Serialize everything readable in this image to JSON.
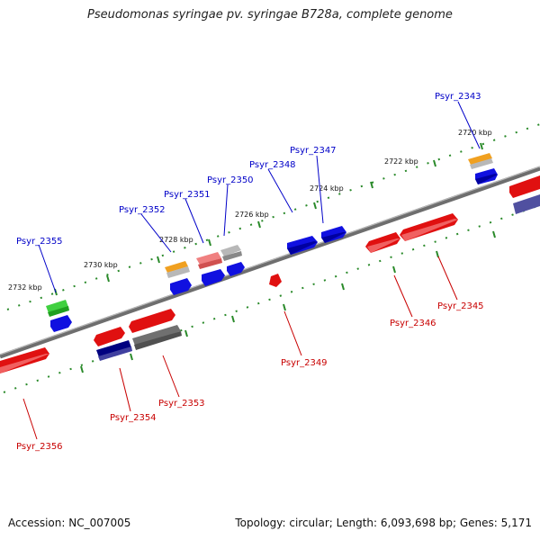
{
  "title": "Pseudomonas syringae pv. syringae B728a, complete genome",
  "footer": {
    "accession": "Accession: NC_007005",
    "summary": "Topology: circular; Length: 6,093,698 bp; Genes: 5,171"
  },
  "scale_labels": [
    "2720 kbp",
    "2722 kbp",
    "2724 kbp",
    "2726 kbp",
    "2728 kbp",
    "2730 kbp",
    "2732 kbp"
  ],
  "colors": {
    "forward_label": "#0000c8",
    "reverse_label": "#c80000",
    "backbone": "#7a7a7a",
    "tick": "#2a8a2a"
  },
  "forward_genes": [
    "Psyr_2343",
    "Psyr_2347",
    "Psyr_2348",
    "Psyr_2350",
    "Psyr_2351",
    "Psyr_2352",
    "Psyr_2355"
  ],
  "reverse_genes": [
    "Psyr_2345",
    "Psyr_2346",
    "Psyr_2349",
    "Psyr_2353",
    "Psyr_2354",
    "Psyr_2356"
  ]
}
